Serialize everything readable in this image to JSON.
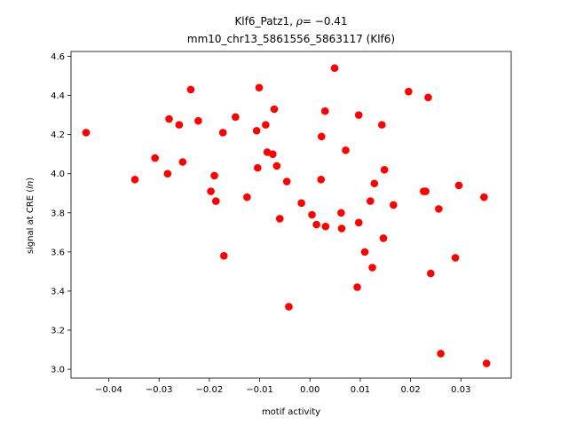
{
  "chart_data": {
    "type": "scatter",
    "title_line1_prefix": "Klf6_Patz1, ",
    "title_line1_rho": "ρ",
    "title_line1_suffix": "= −0.41",
    "title_line2": "mm10_chr13_5861556_5863117 (Klf6)",
    "xlabel": "motif activity",
    "ylabel_prefix": "signal at CRE (",
    "ylabel_ln": "ln",
    "ylabel_suffix": ")",
    "xlim": [
      -0.0475,
      0.04
    ],
    "ylim": [
      2.955,
      4.625
    ],
    "xticks": [
      -0.04,
      -0.03,
      -0.02,
      -0.01,
      0.0,
      0.01,
      0.02,
      0.03
    ],
    "xtick_labels": [
      "−0.04",
      "−0.03",
      "−0.02",
      "−0.01",
      "0.00",
      "0.01",
      "0.02",
      "0.03"
    ],
    "yticks": [
      3.0,
      3.2,
      3.4,
      3.6,
      3.8,
      4.0,
      4.2,
      4.4,
      4.6
    ],
    "ytick_labels": [
      "3.0",
      "3.2",
      "3.4",
      "3.6",
      "3.8",
      "4.0",
      "4.2",
      "4.4",
      "4.6"
    ],
    "grid": false,
    "marker_color": "#ff0000",
    "x": [
      -0.0445,
      -0.0348,
      -0.0308,
      -0.0283,
      -0.028,
      -0.026,
      -0.0253,
      -0.0237,
      -0.0222,
      -0.0197,
      -0.019,
      -0.0187,
      -0.0173,
      -0.0171,
      -0.0148,
      -0.0125,
      -0.0106,
      -0.0104,
      -0.0101,
      -0.0088,
      -0.0085,
      -0.0074,
      -0.0071,
      -0.0066,
      -0.006,
      -0.0046,
      -0.0042,
      -0.0017,
      0.0004,
      0.0013,
      0.0022,
      0.0023,
      0.003,
      0.0031,
      0.0049,
      0.0062,
      0.0063,
      0.0071,
      0.0094,
      0.0097,
      0.0097,
      0.0109,
      0.012,
      0.0124,
      0.0128,
      0.0143,
      0.0146,
      0.0148,
      0.0166,
      0.0196,
      0.0226,
      0.023,
      0.0235,
      0.024,
      0.0256,
      0.026,
      0.0289,
      0.0296,
      0.0346,
      0.0351
    ],
    "y": [
      4.21,
      3.97,
      4.08,
      4.0,
      4.28,
      4.25,
      4.06,
      4.43,
      4.27,
      3.91,
      3.99,
      3.86,
      4.21,
      3.58,
      4.29,
      3.88,
      4.22,
      4.03,
      4.44,
      4.25,
      4.11,
      4.1,
      4.33,
      4.04,
      3.77,
      3.96,
      3.32,
      3.85,
      3.79,
      3.74,
      3.97,
      4.19,
      4.32,
      3.73,
      4.54,
      3.8,
      3.72,
      4.12,
      3.42,
      3.75,
      4.3,
      3.6,
      3.86,
      3.52,
      3.95,
      4.25,
      3.67,
      4.02,
      3.84,
      4.42,
      3.91,
      3.91,
      4.39,
      3.49,
      3.82,
      3.08,
      3.57,
      3.94,
      3.88,
      3.03
    ]
  }
}
